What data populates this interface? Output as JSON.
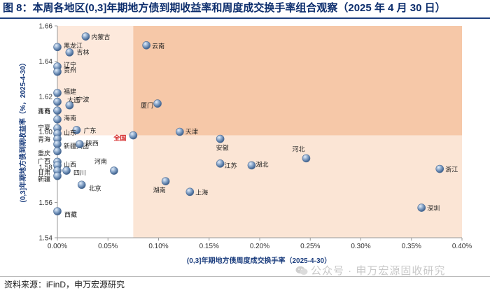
{
  "title": "图 8：本周各地区(0,3]年期地方债到期收益率和周度成交换手率组合观察（2025 年 4 月 30 日）",
  "source": "资料来源：iFinD，申万宏源研究",
  "watermark": "公众号 · 申万宏源固收研究",
  "colors": {
    "title": "#0d2e6d",
    "quadrant_top_right": "#f6c8a8",
    "quadrant_bottom_right": "#fbe5d5",
    "quadrant_top_left": "#fde9dc",
    "quadrant_bottom_left": "#ffffff",
    "marker": "#6f8fb5",
    "highlight_label": "#d31f1f"
  },
  "chart_data": {
    "type": "scatter",
    "xlabel": "(0,3]年期地方债周度成交换手率（2025-4-30）",
    "ylabel": "(0,3]年期地方债到期收益率（%，2025-4-30）",
    "xlim": [
      0,
      0.4
    ],
    "ylim": [
      1.54,
      1.66
    ],
    "x_unit": "%",
    "xticks": [
      0,
      0.05,
      0.1,
      0.15,
      0.2,
      0.25,
      0.3,
      0.35,
      0.4
    ],
    "xtick_labels": [
      "0.00%",
      "0.05%",
      "0.10%",
      "0.15%",
      "0.20%",
      "0.25%",
      "0.30%",
      "0.35%",
      "0.40%"
    ],
    "yticks": [
      1.54,
      1.56,
      1.58,
      1.6,
      1.62,
      1.64,
      1.66
    ],
    "ytick_labels": [
      "1.54",
      "1.56",
      "1.58",
      "1.60",
      "1.62",
      "1.64",
      "1.66"
    ],
    "reference": {
      "label": "全国",
      "x": 0.075,
      "y": 1.598
    },
    "points": [
      {
        "label": "内蒙古",
        "x": 0.028,
        "y": 1.654
      },
      {
        "label": "云南",
        "x": 0.088,
        "y": 1.649
      },
      {
        "label": "黑龙江",
        "x": 0.0,
        "y": 1.648
      },
      {
        "label": "吉林",
        "x": 0.012,
        "y": 1.645
      },
      {
        "label": "辽宁",
        "x": 0.0,
        "y": 1.637
      },
      {
        "label": "贵州",
        "x": 0.0,
        "y": 1.634
      },
      {
        "label": "福建",
        "x": 0.0,
        "y": 1.622
      },
      {
        "label": "大连",
        "x": 0.0,
        "y": 1.617
      },
      {
        "label": "宁波",
        "x": 0.012,
        "y": 1.615
      },
      {
        "label": "厦门",
        "x": 0.099,
        "y": 1.616
      },
      {
        "label": "青岛",
        "x": 0.0,
        "y": 1.612
      },
      {
        "label": "江西",
        "x": 0.0,
        "y": 1.612
      },
      {
        "label": "海南",
        "x": 0.0,
        "y": 1.607
      },
      {
        "label": "宁夏",
        "x": 0.0,
        "y": 1.602
      },
      {
        "label": "广东",
        "x": 0.019,
        "y": 1.601
      },
      {
        "label": "山东",
        "x": 0.0,
        "y": 1.599
      },
      {
        "label": "天津",
        "x": 0.121,
        "y": 1.6
      },
      {
        "label": "青海",
        "x": 0.0,
        "y": 1.596
      },
      {
        "label": "新疆兵团",
        "x": 0.0,
        "y": 1.593
      },
      {
        "label": "安徽",
        "x": 0.161,
        "y": 1.596
      },
      {
        "label": "河北",
        "x": 0.246,
        "y": 1.585
      },
      {
        "label": "重庆",
        "x": 0.0,
        "y": 1.589
      },
      {
        "label": "陕西",
        "x": 0.022,
        "y": 1.593
      },
      {
        "label": "广西",
        "x": 0.0,
        "y": 1.583
      },
      {
        "label": "山西",
        "x": 0.0,
        "y": 1.581
      },
      {
        "label": "河南",
        "x": 0.056,
        "y": 1.578
      },
      {
        "label": "江苏",
        "x": 0.161,
        "y": 1.582
      },
      {
        "label": "湖北",
        "x": 0.192,
        "y": 1.581
      },
      {
        "label": "浙江",
        "x": 0.378,
        "y": 1.579
      },
      {
        "label": "甘肃",
        "x": 0.0,
        "y": 1.578
      },
      {
        "label": "四川",
        "x": 0.009,
        "y": 1.578
      },
      {
        "label": "新疆",
        "x": 0.0,
        "y": 1.575
      },
      {
        "label": "湖南",
        "x": 0.107,
        "y": 1.572
      },
      {
        "label": "北京",
        "x": 0.024,
        "y": 1.57
      },
      {
        "label": "上海",
        "x": 0.131,
        "y": 1.566
      },
      {
        "label": "深圳",
        "x": 0.36,
        "y": 1.557
      },
      {
        "label": "西藏",
        "x": 0.0,
        "y": 1.555
      }
    ]
  }
}
